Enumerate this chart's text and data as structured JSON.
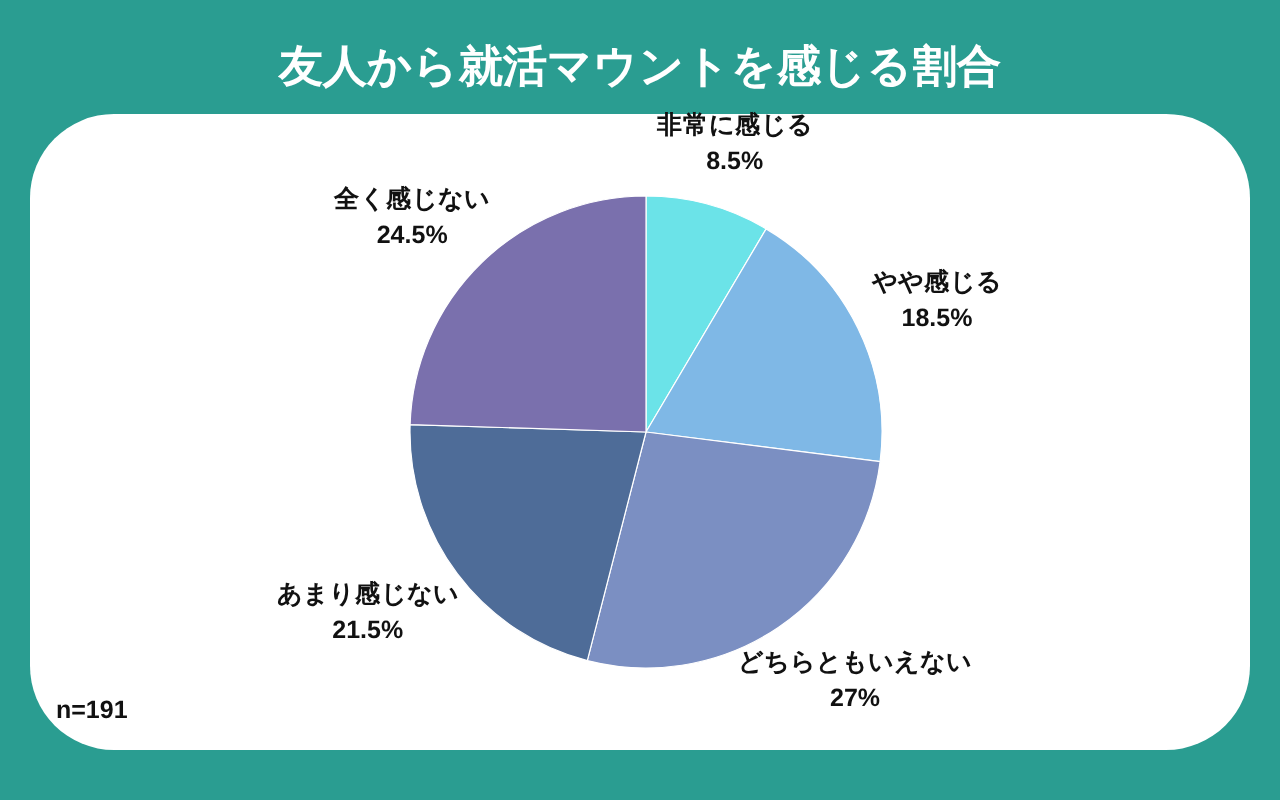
{
  "chart_data": {
    "type": "pie",
    "title": "友人から就活マウントを感じる割合",
    "categories": [
      "非常に感じる",
      "やや感じる",
      "どちらともいえない",
      "あまり感じない",
      "全く感じない"
    ],
    "values": [
      8.5,
      18.5,
      27,
      21.5,
      24.5
    ],
    "value_labels": [
      "8.5%",
      "18.5%",
      "27%",
      "21.5%",
      "24.5%"
    ],
    "colors": [
      "#6be3e8",
      "#7fb8e6",
      "#7b8fc2",
      "#4e6c98",
      "#7a70ad"
    ],
    "annotations": [
      "n=191"
    ]
  }
}
